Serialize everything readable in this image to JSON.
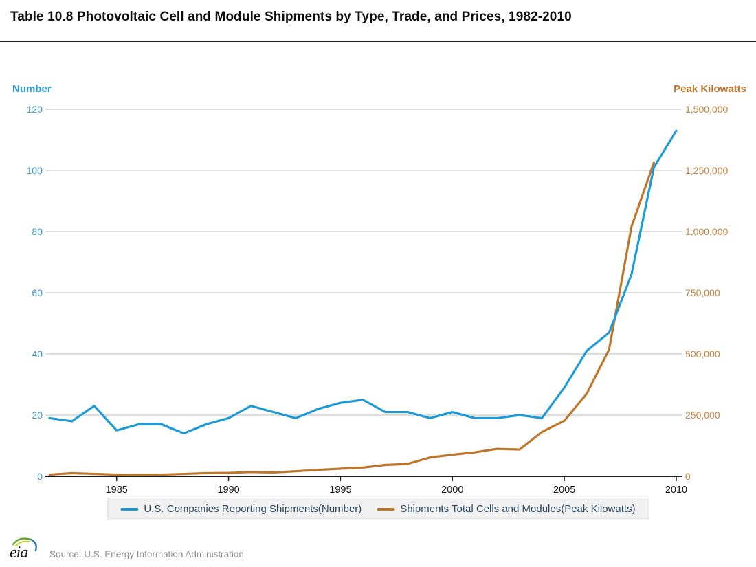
{
  "title": "Table 10.8 Photovoltaic Cell and Module Shipments by Type, Trade, and Prices, 1982-2010",
  "footer": {
    "logo_text": "eia",
    "source": "Source: U.S. Energy Information Administration"
  },
  "colors": {
    "blue_line": "#1e9bd7",
    "orange_line": "#bf752a",
    "left_axis_text": "#3a9ad2",
    "right_axis_text": "#c9803c",
    "gridline": "#cccccc",
    "axis_line": "#1a1a1a",
    "legend_text": "#2b4a63"
  },
  "chart_data": {
    "type": "line",
    "title": "Table 10.8 Photovoltaic Cell and Module Shipments by Type, Trade, and Prices, 1982-2010",
    "grid": true,
    "legend_position": "bottom",
    "x": [
      1982,
      1983,
      1984,
      1985,
      1986,
      1987,
      1988,
      1989,
      1990,
      1991,
      1992,
      1993,
      1994,
      1995,
      1996,
      1997,
      1998,
      1999,
      2000,
      2001,
      2002,
      2003,
      2004,
      2005,
      2006,
      2007,
      2008,
      2009,
      2010
    ],
    "series": [
      {
        "name": "U.S. Companies Reporting Shipments(Number)",
        "axis": "left",
        "color": "#1e9bd7",
        "values": [
          19,
          18,
          23,
          15,
          17,
          17,
          14,
          17,
          19,
          23,
          21,
          19,
          22,
          24,
          25,
          21,
          21,
          19,
          21,
          19,
          19,
          20,
          19,
          29,
          41,
          47,
          66,
          101,
          113
        ]
      },
      {
        "name": "Shipments Total Cells and Modules(Peak Kilowatts)",
        "axis": "right",
        "color": "#bf752a",
        "values": [
          6900,
          12600,
          9900,
          6600,
          6300,
          6900,
          9700,
          12800,
          13800,
          17400,
          15600,
          20500,
          26100,
          31100,
          35500,
          46400,
          50600,
          76800,
          88200,
          97700,
          112100,
          109400,
          181100,
          226900,
          337300,
          518700,
          1020000,
          1282000,
          null
        ]
      }
    ],
    "left_axis": {
      "label": "Number",
      "min": 0,
      "max": 120,
      "ticks": [
        120,
        100,
        80,
        60,
        40,
        20,
        0
      ],
      "tick_labels": [
        "120",
        "100",
        "80",
        "60",
        "40",
        "20",
        "0"
      ],
      "color": "#3a9ad2"
    },
    "right_axis": {
      "label": "Peak Kilowatts",
      "min": 0,
      "max": 1500000,
      "ticks": [
        1500000,
        1250000,
        1000000,
        750000,
        500000,
        250000,
        0
      ],
      "tick_labels": [
        "1,500,000",
        "1,250,000",
        "1,000,000",
        "750,000",
        "500,000",
        "250,000",
        "0"
      ],
      "color": "#c9803c"
    },
    "x_axis": {
      "range": [
        1982,
        2010
      ],
      "tick_years": [
        1985,
        1990,
        1995,
        2000,
        2005,
        2010
      ],
      "tick_labels": [
        "1985",
        "1990",
        "1995",
        "2000",
        "2005",
        "2010"
      ]
    }
  }
}
